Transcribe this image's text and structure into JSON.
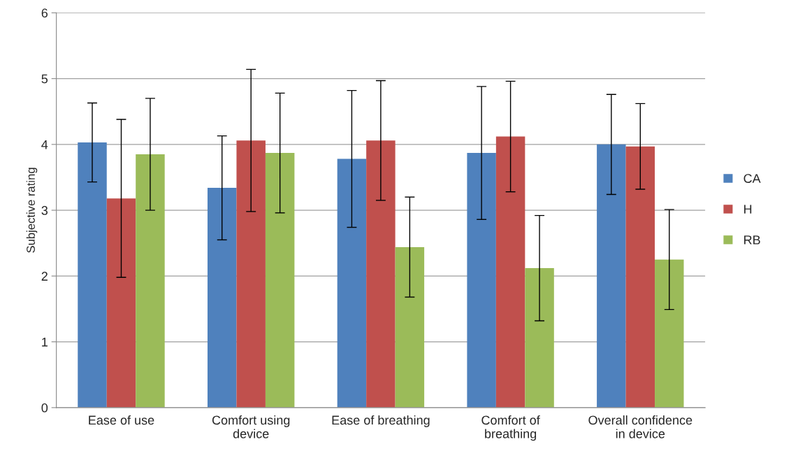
{
  "chart_data": {
    "type": "bar",
    "ylabel": "Subjective rating",
    "categories": [
      "Ease of use",
      "Comfort using device",
      "Ease of breathing",
      "Comfort of breathing",
      "Overall confidence in device"
    ],
    "series": [
      {
        "name": "CA",
        "color": "#4f81bd",
        "values": [
          4.03,
          3.34,
          3.78,
          3.87,
          4.0
        ],
        "errors": [
          0.6,
          0.79,
          1.04,
          1.01,
          0.76
        ]
      },
      {
        "name": "H",
        "color": "#c0504d",
        "values": [
          3.18,
          4.06,
          4.06,
          4.12,
          3.97
        ],
        "errors": [
          1.2,
          1.08,
          0.91,
          0.84,
          0.65
        ]
      },
      {
        "name": "RB",
        "color": "#9bbb59",
        "values": [
          3.85,
          3.87,
          2.44,
          2.12,
          2.25
        ],
        "errors": [
          0.85,
          0.91,
          0.76,
          0.8,
          0.76
        ]
      }
    ],
    "ylim": [
      0,
      6
    ],
    "yticks": [
      0,
      1,
      2,
      3,
      4,
      5,
      6
    ],
    "grid": "y",
    "legend": "right"
  }
}
